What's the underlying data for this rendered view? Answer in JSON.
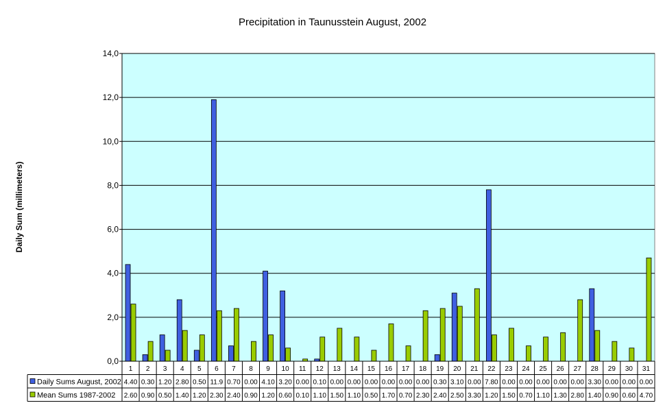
{
  "chart_data": {
    "type": "bar",
    "title": "Precipitation in Taunusstein August, 2002",
    "xlabel": "",
    "ylabel": "Daily Sum (millimeters)",
    "ylim": [
      0,
      14
    ],
    "yticks": [
      "0,0",
      "2,0",
      "4,0",
      "6,0",
      "8,0",
      "10,0",
      "12,0",
      "14,0"
    ],
    "grid": true,
    "legend": "data-table-left",
    "categories": [
      "1",
      "2",
      "3",
      "4",
      "5",
      "6",
      "7",
      "8",
      "9",
      "10",
      "11",
      "12",
      "13",
      "14",
      "15",
      "16",
      "17",
      "18",
      "19",
      "20",
      "21",
      "22",
      "23",
      "24",
      "25",
      "26",
      "27",
      "28",
      "29",
      "30",
      "31"
    ],
    "series": [
      {
        "name": "Daily Sums August, 2002",
        "color": "#3f5fe0",
        "values": [
          4.4,
          0.3,
          1.2,
          2.8,
          0.5,
          11.9,
          0.7,
          0,
          4.1,
          3.2,
          0,
          0.1,
          0,
          0,
          0,
          0,
          0,
          0,
          0.3,
          3.1,
          0,
          7.8,
          0,
          0,
          0,
          0,
          0,
          3.3,
          0,
          0,
          0
        ],
        "labels": [
          "4.40",
          "0.30",
          "1.20",
          "2.80",
          "0.50",
          "11.9",
          "0.70",
          "0.00",
          "4.10",
          "3.20",
          "0.00",
          "0.10",
          "0.00",
          "0.00",
          "0.00",
          "0.00",
          "0.00",
          "0.00",
          "0.30",
          "3.10",
          "0.00",
          "7.80",
          "0.00",
          "0.00",
          "0.00",
          "0.00",
          "0.00",
          "3.30",
          "0.00",
          "0.00",
          "0.00"
        ]
      },
      {
        "name": "Mean Sums 1987-2002",
        "color": "#99cc00",
        "values": [
          2.6,
          0.9,
          0.5,
          1.4,
          1.2,
          2.3,
          2.4,
          0.9,
          1.2,
          0.6,
          0.1,
          1.1,
          1.5,
          1.1,
          0.5,
          1.7,
          0.7,
          2.3,
          2.4,
          2.5,
          3.3,
          1.2,
          1.5,
          0.7,
          1.1,
          1.3,
          2.8,
          1.4,
          0.9,
          0.6,
          4.7
        ],
        "labels": [
          "2.60",
          "0.90",
          "0.50",
          "1.40",
          "1.20",
          "2.30",
          "2.40",
          "0.90",
          "1.20",
          "0.60",
          "0.10",
          "1.10",
          "1.50",
          "1.10",
          "0.50",
          "1.70",
          "0.70",
          "2.30",
          "2.40",
          "2.50",
          "3.30",
          "1.20",
          "1.50",
          "0.70",
          "1.10",
          "1.30",
          "2.80",
          "1.40",
          "0.90",
          "0.60",
          "4.70"
        ]
      }
    ]
  }
}
